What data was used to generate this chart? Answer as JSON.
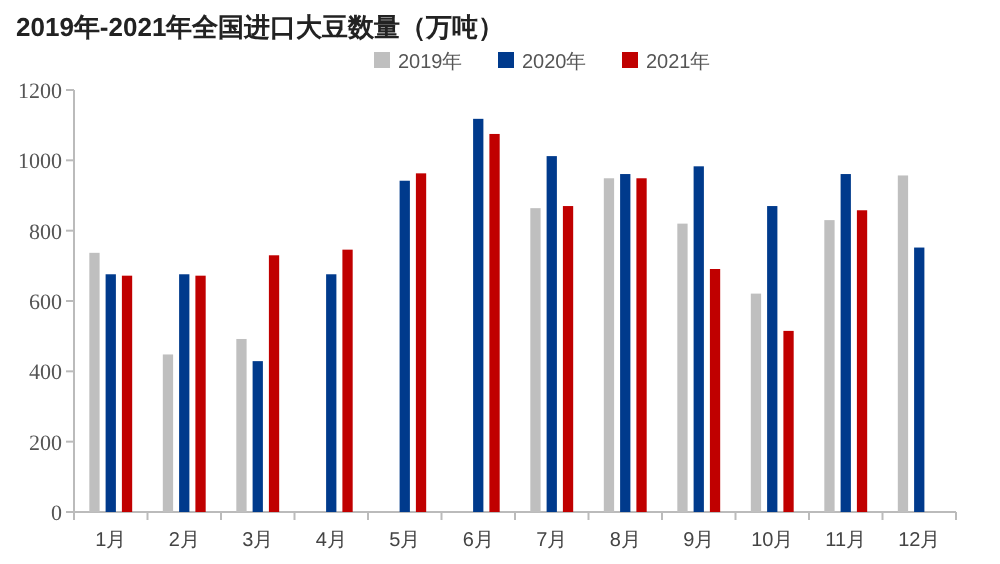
{
  "chart_data": {
    "type": "bar",
    "title": "2019年-2021年全国进口大豆数量（万吨）",
    "categories": [
      "1月",
      "2月",
      "3月",
      "4月",
      "5月",
      "6月",
      "7月",
      "8月",
      "9月",
      "10月",
      "11月",
      "12月"
    ],
    "series": [
      {
        "name": "2019年",
        "color": "#bfbfbf",
        "values": [
          737,
          448,
          492,
          null,
          null,
          null,
          864,
          949,
          820,
          621,
          830,
          957
        ]
      },
      {
        "name": "2020年",
        "color": "#003a8c",
        "values": [
          676,
          676,
          429,
          676,
          942,
          1118,
          1012,
          961,
          983,
          870,
          961,
          752
        ]
      },
      {
        "name": "2021年",
        "color": "#c00000",
        "values": [
          672,
          672,
          730,
          746,
          963,
          1075,
          870,
          949,
          691,
          515,
          858,
          null
        ]
      }
    ],
    "ylim": [
      0,
      1200
    ],
    "yticks": [
      0,
      200,
      400,
      600,
      800,
      1000,
      1200
    ],
    "grid": false,
    "legend": "top"
  }
}
